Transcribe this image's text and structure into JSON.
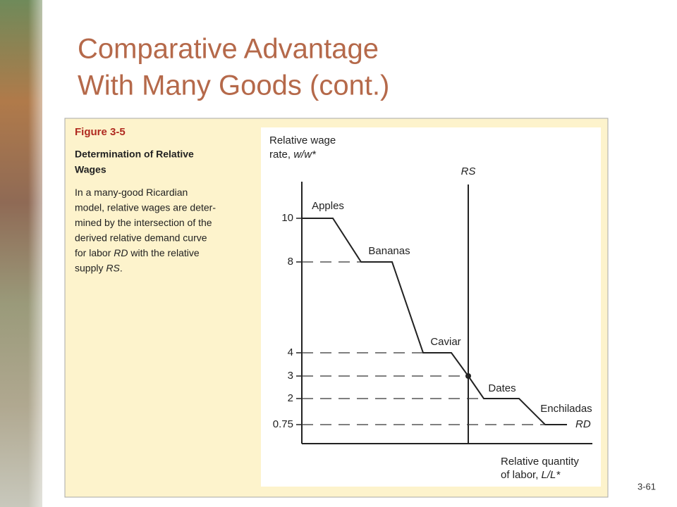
{
  "slide": {
    "title_lines": [
      "Comparative Advantage",
      "With Many Goods (cont.)"
    ],
    "page_number": "3-61"
  },
  "figure": {
    "label": "Figure 3-5",
    "heading_lines": [
      "Determination of Relative",
      "Wages"
    ],
    "body_lines": [
      [
        "In a many-good Ricardian"
      ],
      [
        "model, relative wages are deter-"
      ],
      [
        "mined by the intersection of the"
      ],
      [
        "derived relative demand curve"
      ],
      [
        "for labor ",
        "RD",
        " with the relative"
      ],
      [
        "supply ",
        "RS",
        "."
      ]
    ]
  },
  "diagram": {
    "y_axis_label": [
      [
        "Relative wage"
      ],
      [
        "rate, ",
        "w/w*"
      ]
    ],
    "x_axis_label": [
      [
        "Relative quantity"
      ],
      [
        "of labor, ",
        "L/L*"
      ]
    ],
    "wage_levels": [
      10,
      8,
      4,
      3,
      2,
      0.75
    ],
    "goods": [
      "Apples",
      "Bananas",
      "Caviar",
      "Dates",
      "Enchiladas"
    ],
    "supply_label": "RS",
    "demand_label": "RD"
  }
}
